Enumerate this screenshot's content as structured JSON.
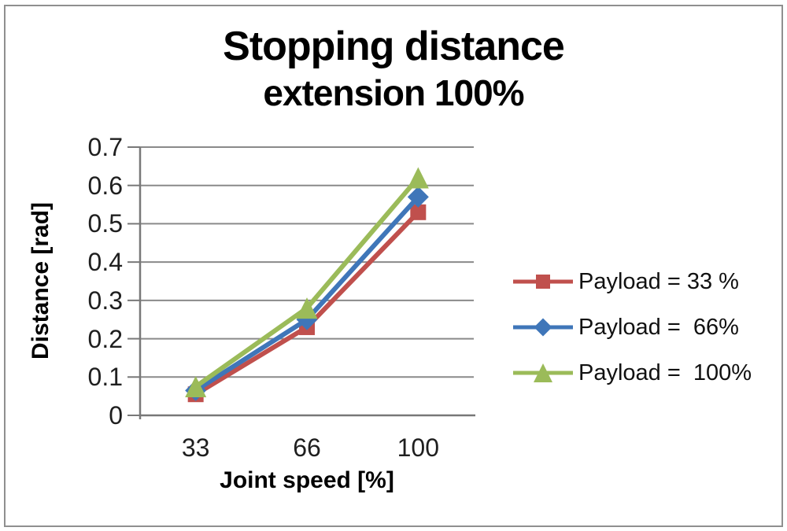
{
  "window": {
    "background": "#ffffff",
    "frame_border_color": "#8f8f8f"
  },
  "title": {
    "line1": "Stopping distance",
    "line2": "extension 100%"
  },
  "chart_data": {
    "type": "line",
    "title": "Stopping distance extension 100%",
    "categories": [
      "33",
      "66",
      "100"
    ],
    "xlabel": "Joint speed [%]",
    "ylabel": "Distance [rad]",
    "ylim": [
      0,
      0.7
    ],
    "ytick_step": 0.1,
    "ytick_labels": [
      "0",
      "0.1",
      "0.2",
      "0.3",
      "0.4",
      "0.5",
      "0.6",
      "0.7"
    ],
    "grid": true,
    "legend_position": "right-middle",
    "gridline_color": "#8a8a8a",
    "axis_color": "#787878",
    "series": [
      {
        "name": "Payload = 33 %",
        "marker": "square",
        "color": "#c0504d",
        "values": [
          0.055,
          0.23,
          0.53
        ]
      },
      {
        "name": "Payload =  66%",
        "marker": "diamond",
        "color": "#3f76b9",
        "values": [
          0.065,
          0.25,
          0.57
        ]
      },
      {
        "name": "Payload =  100%",
        "marker": "triangle",
        "color": "#9bbb59",
        "values": [
          0.075,
          0.28,
          0.62
        ]
      }
    ]
  }
}
